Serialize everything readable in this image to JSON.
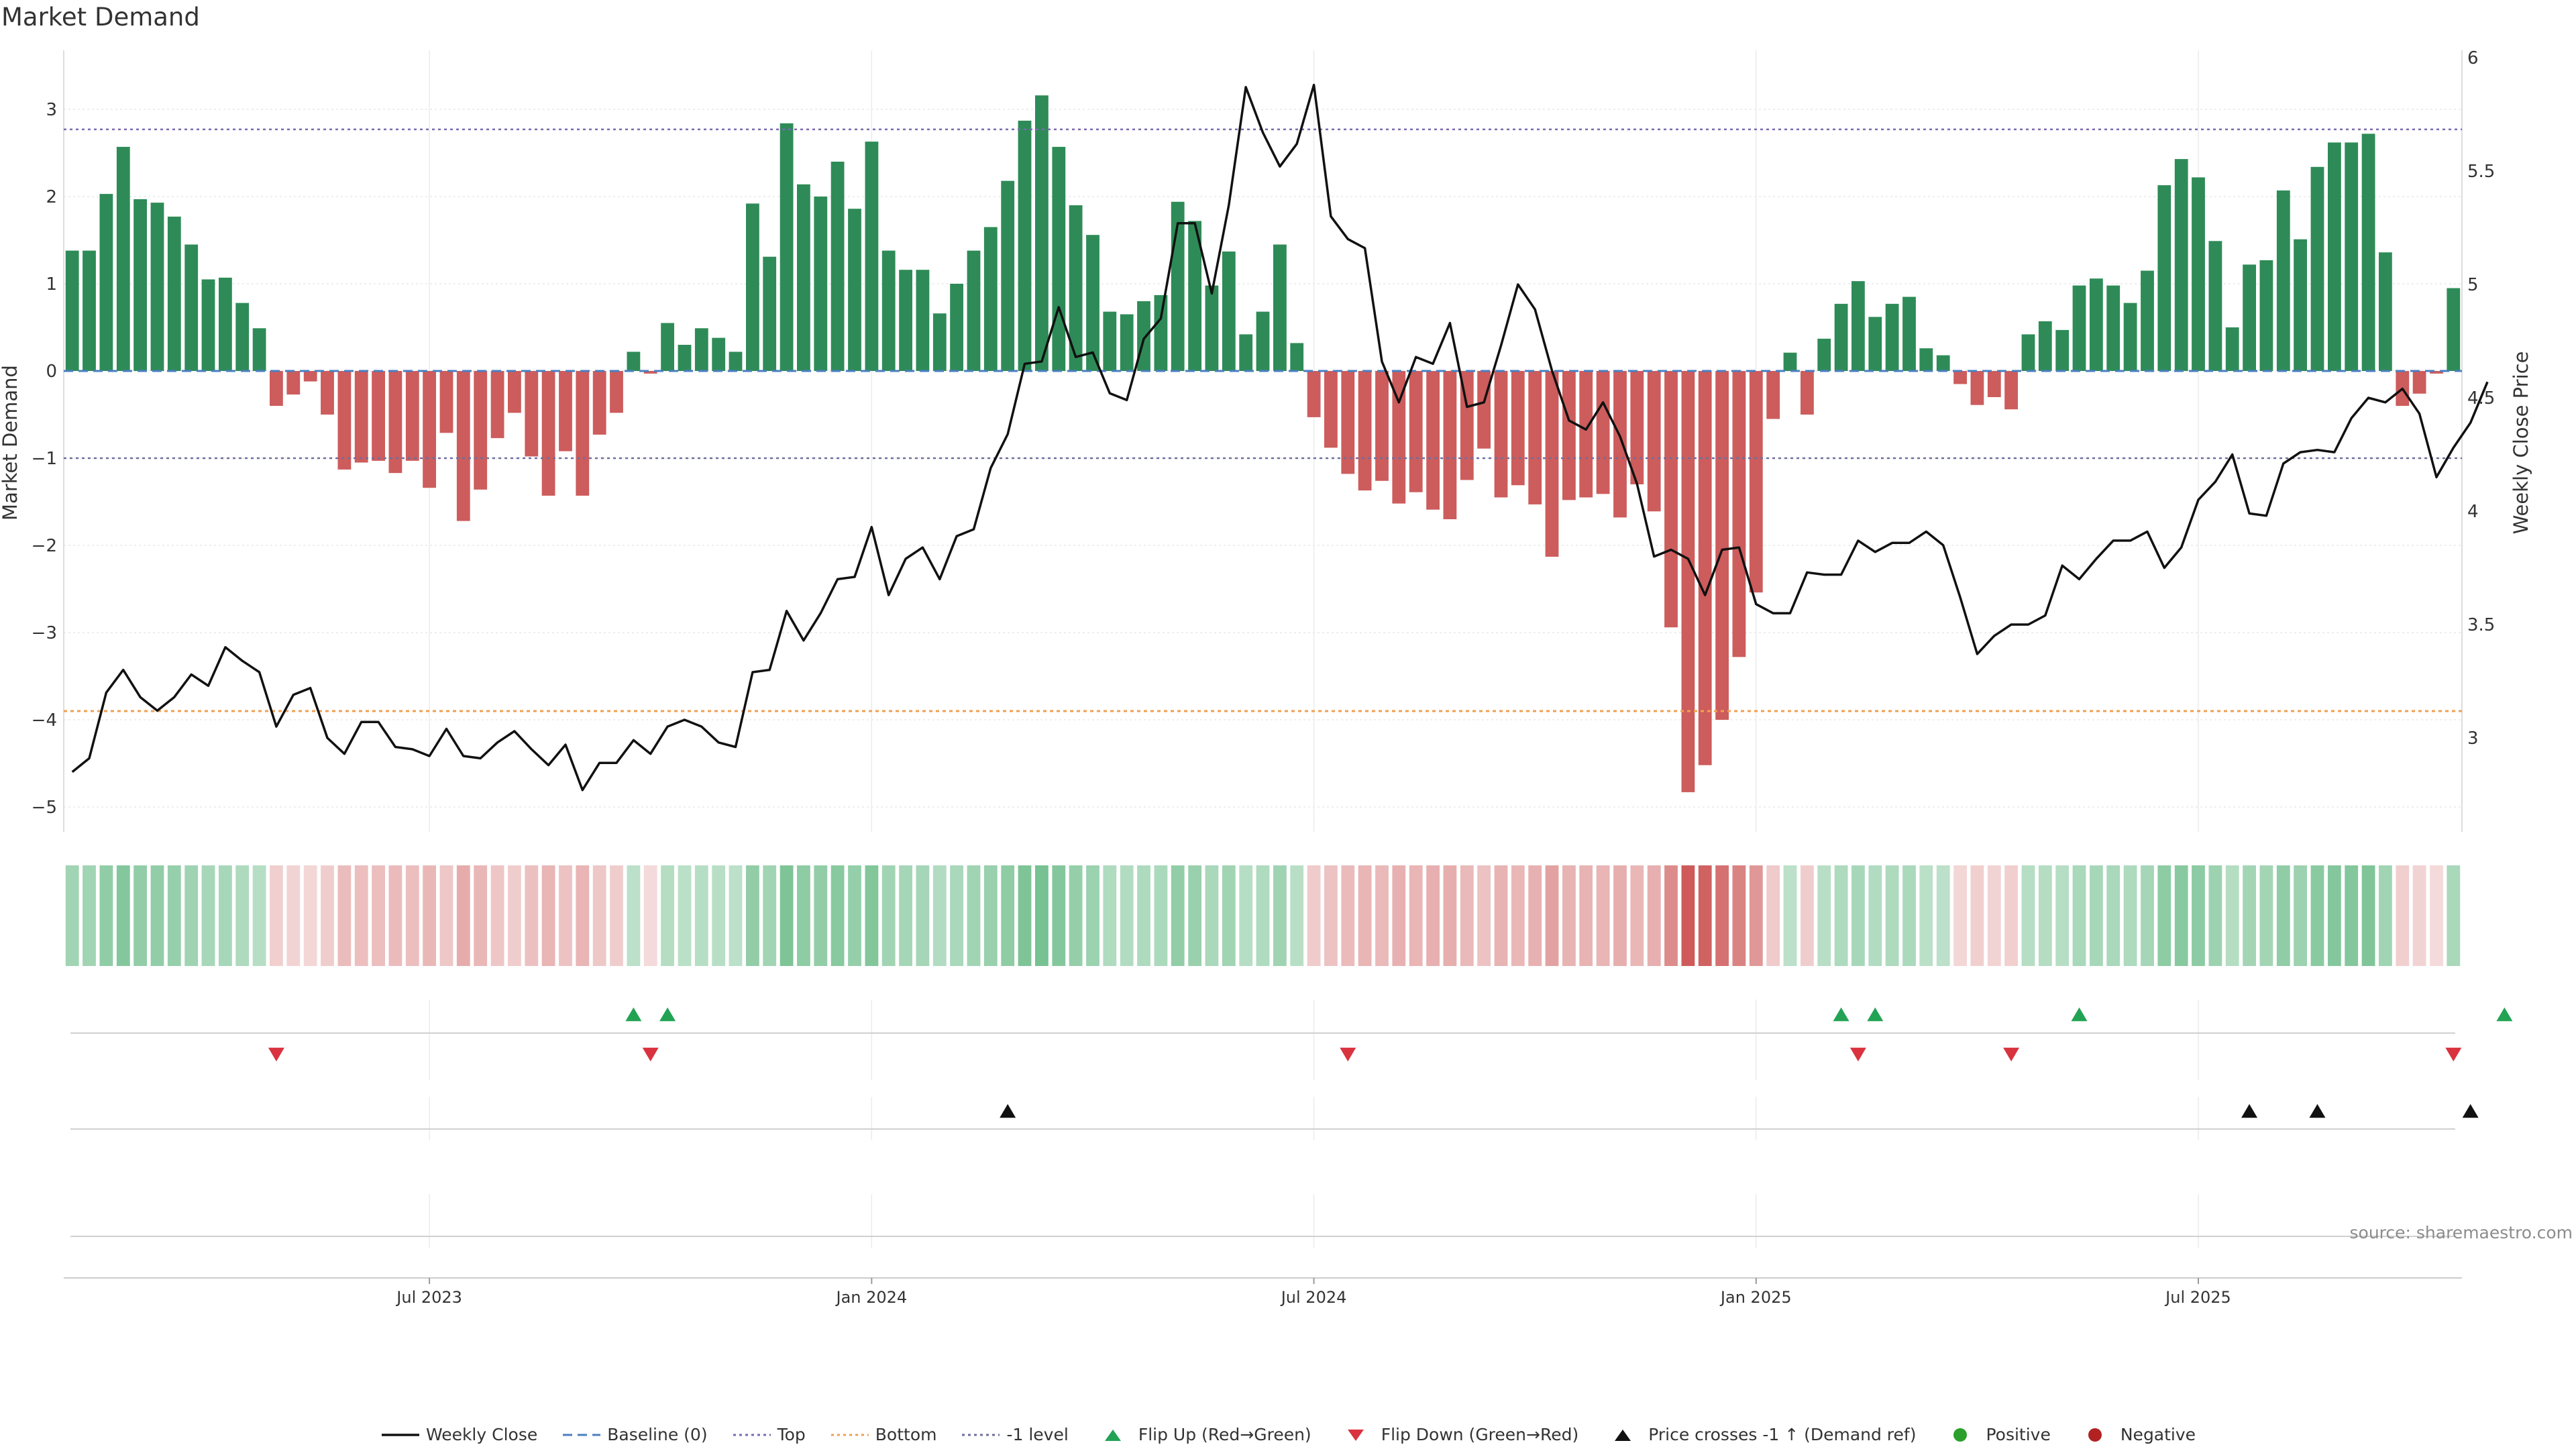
{
  "page": {
    "title": "Market Demand",
    "source": "source: sharemaestro.com"
  },
  "colors": {
    "positive": "#2e8b57",
    "negative": "#cd5c5c",
    "price_line": "#111111",
    "top_line": "#7a6bb0",
    "bottom_line": "#f0a050",
    "neg1_line": "#6e6e9e",
    "baseline": "#4a7fc0",
    "flip_up": "#22a354",
    "flip_down": "#d9333f",
    "cross": "#111111",
    "positive_dot": "#2ca02c",
    "negative_dot": "#b22222"
  },
  "chart_data": {
    "type": "bar",
    "title": "Market Demand",
    "ylabel": "Market Demand",
    "y2label": "Weekly Close Price",
    "ylim": [
      -5.3,
      3.6
    ],
    "y2lim": [
      2.65,
      6.0
    ],
    "yticks": [
      3,
      2,
      1,
      0,
      -1,
      -2,
      -3,
      -4,
      -5
    ],
    "y2ticks": [
      6,
      5.5,
      5,
      4.5,
      4,
      3.5,
      3
    ],
    "ytick_labels": [
      "3",
      "2",
      "1",
      "0",
      "−1",
      "−2",
      "−3",
      "−4",
      "−5"
    ],
    "y2tick_labels": [
      "6",
      "5.5",
      "5",
      "4.5",
      "4",
      "3.5",
      "3"
    ],
    "xtick_labels": [
      "Jul 2023",
      "Jan 2024",
      "Jul 2024",
      "Jan 2025",
      "Jul 2025"
    ],
    "xtick_index": [
      21,
      47,
      73,
      99,
      125
    ],
    "reference_lines": {
      "top": 2.77,
      "bottom": -3.9,
      "neg1": -1.0,
      "baseline": 0
    },
    "grid": true,
    "legend_position": "bottom-center",
    "demand": [
      1.38,
      1.38,
      2.03,
      2.57,
      1.97,
      1.93,
      1.77,
      1.45,
      1.05,
      1.07,
      0.78,
      0.49,
      -0.4,
      -0.27,
      -0.12,
      -0.5,
      -1.13,
      -1.05,
      -1.03,
      -1.17,
      -1.03,
      -1.34,
      -0.71,
      -1.72,
      -1.36,
      -0.77,
      -0.48,
      -0.98,
      -1.43,
      -0.92,
      -1.43,
      -0.73,
      -0.48,
      0.22,
      -0.03,
      0.55,
      0.3,
      0.49,
      0.38,
      0.22,
      1.92,
      1.31,
      2.84,
      2.14,
      2.0,
      2.4,
      1.86,
      2.63,
      1.38,
      1.16,
      1.16,
      0.66,
      1.0,
      1.38,
      1.65,
      2.18,
      2.87,
      3.16,
      2.57,
      1.9,
      1.56,
      0.68,
      0.65,
      0.8,
      0.87,
      1.94,
      1.72,
      0.98,
      1.37,
      0.42,
      0.68,
      1.45,
      0.32,
      -0.53,
      -0.88,
      -1.18,
      -1.37,
      -1.26,
      -1.52,
      -1.39,
      -1.59,
      -1.7,
      -1.25,
      -0.89,
      -1.45,
      -1.31,
      -1.53,
      -2.13,
      -1.48,
      -1.45,
      -1.41,
      -1.68,
      -1.3,
      -1.61,
      -2.94,
      -4.83,
      -4.52,
      -4.0,
      -3.28,
      -2.54,
      -0.55,
      0.21,
      -0.5,
      0.37,
      0.77,
      1.03,
      0.62,
      0.77,
      0.85,
      0.26,
      0.18,
      -0.15,
      -0.39,
      -0.3,
      -0.44,
      0.42,
      0.57,
      0.47,
      0.98,
      1.06,
      0.98,
      0.78,
      1.15,
      2.13,
      2.43,
      2.22,
      1.49,
      0.5,
      1.22,
      1.27,
      2.07,
      1.51,
      2.34,
      2.62,
      2.62,
      2.72,
      1.36,
      -0.4,
      -0.26,
      -0.03,
      0.95
    ],
    "price": [
      2.85,
      2.91,
      3.2,
      3.3,
      3.18,
      3.12,
      3.18,
      3.28,
      3.23,
      3.4,
      3.34,
      3.29,
      3.05,
      3.19,
      3.22,
      3.0,
      2.93,
      3.07,
      3.07,
      2.96,
      2.95,
      2.92,
      3.04,
      2.92,
      2.91,
      2.98,
      3.03,
      2.95,
      2.88,
      2.97,
      2.77,
      2.89,
      2.89,
      2.99,
      2.93,
      3.05,
      3.08,
      3.05,
      2.98,
      2.96,
      3.29,
      3.3,
      3.56,
      3.43,
      3.55,
      3.7,
      3.71,
      3.93,
      3.63,
      3.79,
      3.84,
      3.7,
      3.89,
      3.92,
      4.19,
      4.34,
      4.65,
      4.66,
      4.9,
      4.68,
      4.7,
      4.52,
      4.49,
      4.76,
      4.85,
      5.27,
      5.27,
      4.96,
      5.35,
      5.87,
      5.67,
      5.52,
      5.62,
      5.88,
      5.3,
      5.2,
      5.16,
      4.66,
      4.48,
      4.68,
      4.65,
      4.83,
      4.46,
      4.48,
      4.73,
      5.0,
      4.89,
      4.62,
      4.4,
      4.36,
      4.48,
      4.33,
      4.12,
      3.8,
      3.83,
      3.79,
      3.63,
      3.83,
      3.84,
      3.59,
      3.55,
      3.55,
      3.73,
      3.72,
      3.72,
      3.87,
      3.82,
      3.86,
      3.86,
      3.91,
      3.85,
      3.62,
      3.37,
      3.45,
      3.5,
      3.5,
      3.54,
      3.76,
      3.7,
      3.79,
      3.87,
      3.87,
      3.91,
      3.75,
      3.84,
      4.05,
      4.13,
      4.25,
      3.99,
      3.98,
      4.21,
      4.26,
      4.27,
      4.26,
      4.41,
      4.5,
      4.48,
      4.54,
      4.43,
      4.15,
      4.28,
      4.39,
      4.57
    ],
    "flip_up_index": [
      33,
      35,
      104,
      106,
      118,
      143
    ],
    "flip_down_index": [
      12,
      34,
      75,
      105,
      114,
      140
    ],
    "cross_index": [
      55,
      128,
      132,
      141
    ]
  },
  "legend": [
    {
      "label": "Weekly Close",
      "type": "solid-line",
      "color": "#111111"
    },
    {
      "label": "Baseline (0)",
      "type": "dashed-line",
      "color": "#4a7fc0"
    },
    {
      "label": "Top",
      "type": "dotted-line",
      "color": "#7a6bb0"
    },
    {
      "label": "Bottom",
      "type": "dotted-line",
      "color": "#f0a050"
    },
    {
      "label": "-1 level",
      "type": "dotted-line",
      "color": "#6e6e9e"
    },
    {
      "label": "Flip Up (Red→Green)",
      "type": "triangle-up",
      "color": "#22a354"
    },
    {
      "label": "Flip Down (Green→Red)",
      "type": "triangle-down",
      "color": "#d9333f"
    },
    {
      "label": "Price crosses -1 ↑ (Demand ref)",
      "type": "triangle-up",
      "color": "#111111"
    },
    {
      "label": "Positive",
      "type": "dot",
      "color": "#2ca02c"
    },
    {
      "label": "Negative",
      "type": "dot",
      "color": "#b22222"
    }
  ]
}
